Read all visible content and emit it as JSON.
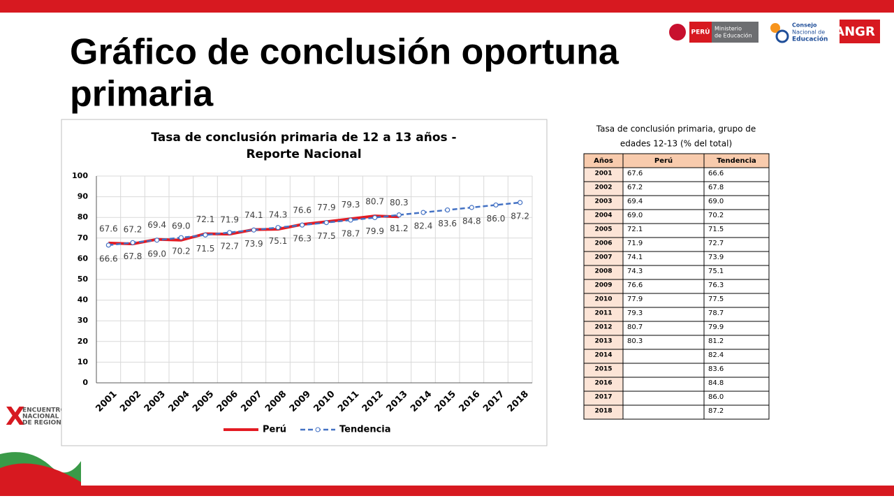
{
  "slide": {
    "title_lines": [
      "Gráfico de conclusión oportuna",
      "primaria"
    ],
    "logos": {
      "peru": "PERÚ",
      "ministerio": [
        "Ministerio",
        "de Educación"
      ],
      "consejo": [
        "Consejo",
        "Nacional de",
        "Educación"
      ],
      "angr": "ANGR"
    },
    "encuentro": [
      "ENCUENTRO",
      "NACIONAL",
      "DE REGIONES"
    ]
  },
  "chart_data": {
    "type": "line",
    "title_lines": [
      "Tasa de conclusión primaria de 12 a 13 años -",
      "Reporte Nacional"
    ],
    "categories": [
      "2001",
      "2002",
      "2003",
      "2004",
      "2005",
      "2006",
      "2007",
      "2008",
      "2009",
      "2010",
      "2011",
      "2012",
      "2013",
      "2014",
      "2015",
      "2016",
      "2017",
      "2018"
    ],
    "series": [
      {
        "name": "Perú",
        "color": "#e31b23",
        "dashed": false,
        "markers": false,
        "values": [
          67.6,
          67.2,
          69.4,
          69.0,
          72.1,
          71.9,
          74.1,
          74.3,
          76.6,
          77.9,
          79.3,
          80.7,
          80.3,
          null,
          null,
          null,
          null,
          null
        ],
        "value_labels": [
          "67.6",
          "67.2",
          "69.4",
          "69.0",
          "72.1",
          "71.9",
          "74.1",
          "74.3",
          "76.6",
          "77.9",
          "79.3",
          "80.7",
          "80.3",
          null,
          null,
          null,
          null,
          null
        ]
      },
      {
        "name": "Tendencia",
        "color": "#4472c4",
        "dashed": true,
        "markers": true,
        "values": [
          66.6,
          67.8,
          69.0,
          70.2,
          71.5,
          72.7,
          73.9,
          75.1,
          76.3,
          77.5,
          78.7,
          79.9,
          81.2,
          82.4,
          83.6,
          84.8,
          86.0,
          87.2
        ],
        "value_labels": [
          "66.6",
          "67.8",
          "69.0",
          "70.2",
          "71.5",
          "72.7",
          "73.9",
          "75.1",
          "76.3",
          "77.5",
          "78.7",
          "79.9",
          "81.2",
          "82.4",
          "83.6",
          "84.8",
          "86.0",
          "87.2"
        ]
      }
    ],
    "ylim": [
      0,
      100
    ],
    "yticks": [
      0,
      10,
      20,
      30,
      40,
      50,
      60,
      70,
      80,
      90,
      100
    ],
    "grid": true,
    "legend": "bottom"
  },
  "table": {
    "title_lines": [
      "Tasa de conclusión primaria, grupo de",
      "edades 12-13 (% del total)"
    ],
    "header": [
      "Años",
      "Perú",
      "Tendencia"
    ],
    "rows": [
      {
        "year": "2001",
        "peru": "67.6",
        "tendencia": "66.6"
      },
      {
        "year": "2002",
        "peru": "67.2",
        "tendencia": "67.8"
      },
      {
        "year": "2003",
        "peru": "69.4",
        "tendencia": "69.0"
      },
      {
        "year": "2004",
        "peru": "69.0",
        "tendencia": "70.2"
      },
      {
        "year": "2005",
        "peru": "72.1",
        "tendencia": "71.5"
      },
      {
        "year": "2006",
        "peru": "71.9",
        "tendencia": "72.7"
      },
      {
        "year": "2007",
        "peru": "74.1",
        "tendencia": "73.9"
      },
      {
        "year": "2008",
        "peru": "74.3",
        "tendencia": "75.1"
      },
      {
        "year": "2009",
        "peru": "76.6",
        "tendencia": "76.3"
      },
      {
        "year": "2010",
        "peru": "77.9",
        "tendencia": "77.5"
      },
      {
        "year": "2011",
        "peru": "79.3",
        "tendencia": "78.7"
      },
      {
        "year": "2012",
        "peru": "80.7",
        "tendencia": "79.9"
      },
      {
        "year": "2013",
        "peru": "80.3",
        "tendencia": "81.2"
      },
      {
        "year": "2014",
        "tendencia": "82.4"
      },
      {
        "year": "2015",
        "tendencia": "83.6"
      },
      {
        "year": "2016",
        "tendencia": "84.8"
      },
      {
        "year": "2017",
        "tendencia": "86.0"
      },
      {
        "year": "2018",
        "tendencia": "87.2"
      }
    ]
  }
}
